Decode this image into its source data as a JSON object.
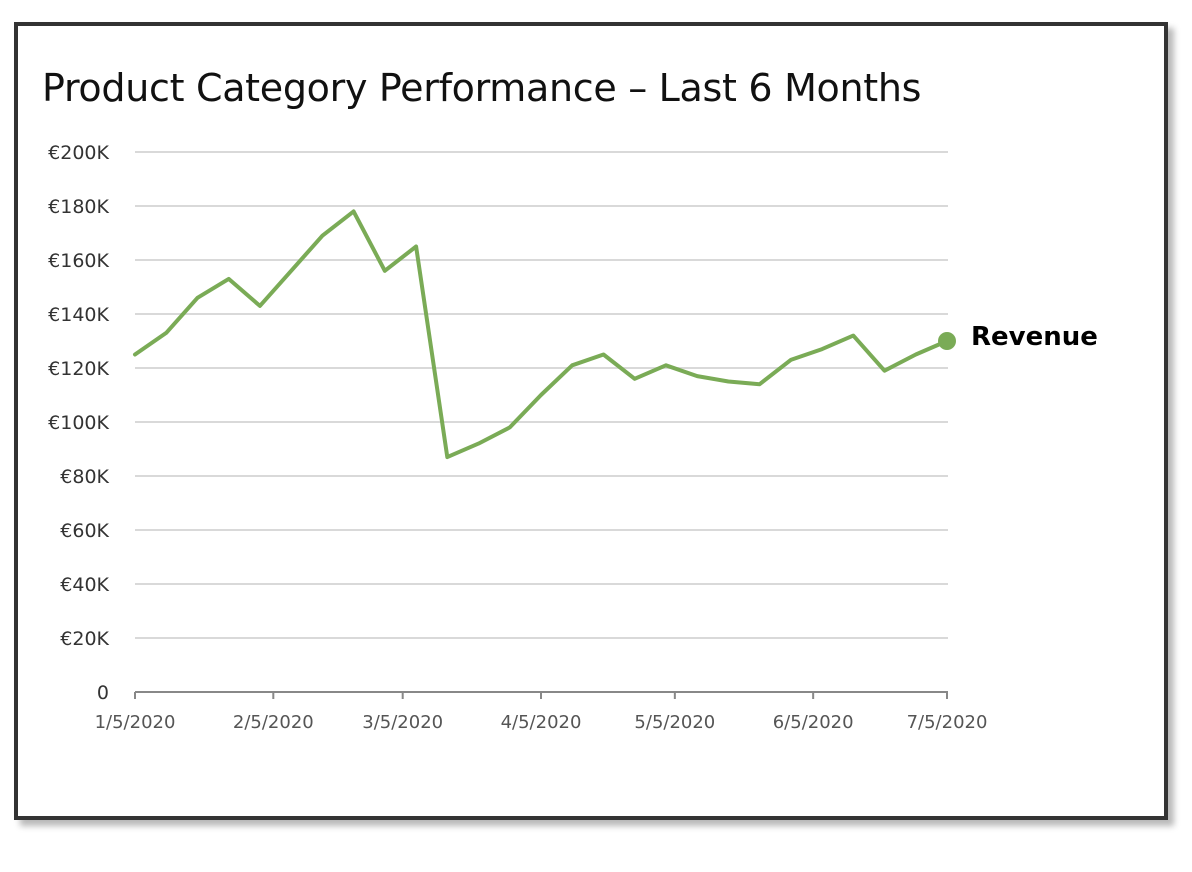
{
  "chart_data": {
    "type": "line",
    "title": "Product Category Performance – Last 6 Months",
    "xlabel": "",
    "ylabel": "",
    "x_ticks": [
      "1/5/2020",
      "2/5/2020",
      "3/5/2020",
      "4/5/2020",
      "5/5/2020",
      "6/5/2020",
      "7/5/2020"
    ],
    "y_ticks": [
      "0",
      "€20K",
      "€40K",
      "€60K",
      "€80K",
      "€100K",
      "€120K",
      "€140K",
      "€160K",
      "€180K",
      "€200K"
    ],
    "ylim": [
      0,
      200000
    ],
    "xlim": [
      "2020-01-05",
      "2020-07-05"
    ],
    "grid": true,
    "legend": "end-of-line label",
    "series": [
      {
        "name": "Revenue",
        "color": "#7aab56",
        "points": [
          {
            "x": "2020-01-05",
            "y": 125000
          },
          {
            "x": "2020-01-12",
            "y": 133000
          },
          {
            "x": "2020-01-19",
            "y": 146000
          },
          {
            "x": "2020-01-26",
            "y": 153000
          },
          {
            "x": "2020-02-02",
            "y": 143000
          },
          {
            "x": "2020-02-09",
            "y": 156000
          },
          {
            "x": "2020-02-16",
            "y": 169000
          },
          {
            "x": "2020-02-23",
            "y": 178000
          },
          {
            "x": "2020-03-01",
            "y": 156000
          },
          {
            "x": "2020-03-08",
            "y": 165000
          },
          {
            "x": "2020-03-15",
            "y": 87000
          },
          {
            "x": "2020-03-22",
            "y": 92000
          },
          {
            "x": "2020-03-29",
            "y": 98000
          },
          {
            "x": "2020-04-05",
            "y": 110000
          },
          {
            "x": "2020-04-12",
            "y": 121000
          },
          {
            "x": "2020-04-19",
            "y": 125000
          },
          {
            "x": "2020-04-26",
            "y": 116000
          },
          {
            "x": "2020-05-03",
            "y": 121000
          },
          {
            "x": "2020-05-10",
            "y": 117000
          },
          {
            "x": "2020-05-17",
            "y": 115000
          },
          {
            "x": "2020-05-24",
            "y": 114000
          },
          {
            "x": "2020-05-31",
            "y": 123000
          },
          {
            "x": "2020-06-07",
            "y": 127000
          },
          {
            "x": "2020-06-14",
            "y": 132000
          },
          {
            "x": "2020-06-21",
            "y": 119000
          },
          {
            "x": "2020-06-28",
            "y": 125000
          },
          {
            "x": "2020-07-05",
            "y": 130000
          }
        ]
      }
    ]
  }
}
